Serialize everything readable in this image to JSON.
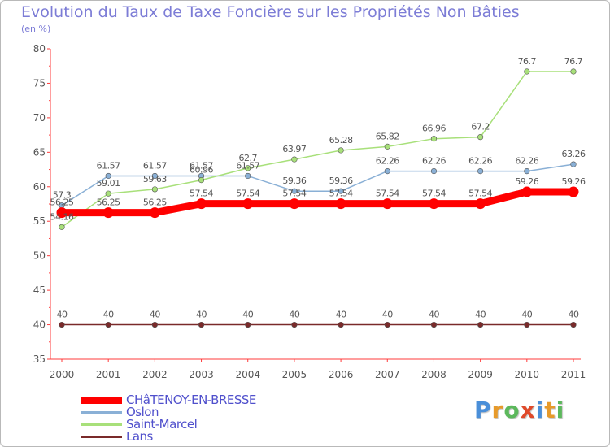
{
  "header": {
    "title": "Evolution du Taux de Taxe Foncière sur les Propriétés Non Bâties",
    "unit": "(en %)"
  },
  "chart_data": {
    "type": "line",
    "x": [
      "2000",
      "2001",
      "2002",
      "2003",
      "2004",
      "2005",
      "2006",
      "2007",
      "2008",
      "2009",
      "2010",
      "2011"
    ],
    "ylim": [
      35,
      80
    ],
    "yticks": [
      "35",
      "40",
      "45",
      "50",
      "55",
      "60",
      "65",
      "70",
      "75",
      "80"
    ],
    "grid": false,
    "series": [
      {
        "name": "Lans",
        "color": "#7a2a2a",
        "width": 1.5,
        "values": [
          40,
          40,
          40,
          40,
          40,
          40,
          40,
          40,
          40,
          40,
          40,
          40
        ],
        "labels": [
          "40",
          "40",
          "40",
          "40",
          "40",
          "40",
          "40",
          "40",
          "40",
          "40",
          "40",
          "40"
        ]
      },
      {
        "name": "Oslon",
        "color": "#8ab0d6",
        "width": 1.5,
        "values": [
          57.3,
          61.57,
          61.57,
          61.57,
          61.57,
          59.36,
          59.36,
          62.26,
          62.26,
          62.26,
          62.26,
          63.26
        ],
        "labels": [
          "57.3",
          "61.57",
          "61.57",
          "61.57",
          "61.57",
          "59.36",
          "59.36",
          "62.26",
          "62.26",
          "62.26",
          "62.26",
          "63.26"
        ]
      },
      {
        "name": "Saint-Marcel",
        "color": "#a8e07a",
        "width": 1.5,
        "values": [
          54.16,
          59.01,
          59.63,
          60.96,
          62.7,
          63.97,
          65.28,
          65.82,
          66.96,
          67.2,
          76.7,
          76.7
        ],
        "labels": [
          "54.16",
          "59.01",
          "59.63",
          "60.96",
          "62.7",
          "63.97",
          "65.28",
          "65.82",
          "66.96",
          "67.2",
          "76.7",
          "76.7"
        ]
      },
      {
        "name": "CHâTENOY-EN-BRESSE",
        "color": "#ff0000",
        "width": 9,
        "values": [
          56.25,
          56.25,
          56.25,
          57.54,
          57.54,
          57.54,
          57.54,
          57.54,
          57.54,
          57.54,
          59.26,
          59.26
        ],
        "labels": [
          "56.25",
          "56.25",
          "56.25",
          "57.54",
          "57.54",
          "57.54",
          "57.54",
          "57.54",
          "57.54",
          "57.54",
          "59.26",
          "59.26"
        ]
      }
    ],
    "legend": {
      "placement": "bottom-left",
      "items": [
        "CHâTENOY-EN-BRESSE",
        "Oslon",
        "Saint-Marcel",
        "Lans"
      ]
    }
  },
  "logo": {
    "letters": [
      {
        "char": "P",
        "color": "#4a8fd9"
      },
      {
        "char": "r",
        "color": "#e79a2a"
      },
      {
        "char": "o",
        "color": "#5cb85c"
      },
      {
        "char": "x",
        "color": "#e04a2a"
      },
      {
        "char": "i",
        "color": "#4a8fd9"
      },
      {
        "char": "t",
        "color": "#e79a2a"
      },
      {
        "char": "i",
        "color": "#5cb85c"
      }
    ]
  }
}
